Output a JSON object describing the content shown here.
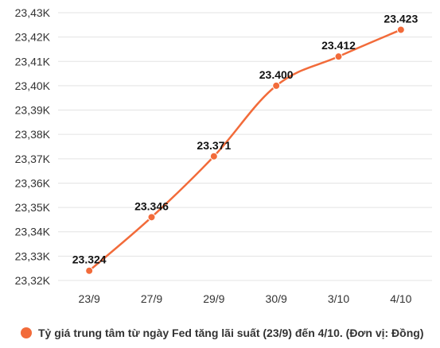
{
  "chart_data": {
    "type": "line",
    "categories": [
      "23/9",
      "27/9",
      "29/9",
      "30/9",
      "3/10",
      "4/10"
    ],
    "series": [
      {
        "name": "Tỷ giá trung tâm từ ngày Fed tăng lãi suất (23/9) đến 4/10. (Đơn vị: Đồng)",
        "values": [
          23324,
          23346,
          23371,
          23400,
          23412,
          23423
        ],
        "labels": [
          "23.324",
          "23.346",
          "23.371",
          "23.400",
          "23.412",
          "23.423"
        ],
        "color": "#f26b3a"
      }
    ],
    "yticks": [
      {
        "value": 23430,
        "label": "23,43K"
      },
      {
        "value": 23420,
        "label": "23,42K"
      },
      {
        "value": 23410,
        "label": "23,41K"
      },
      {
        "value": 23400,
        "label": "23,40K"
      },
      {
        "value": 23390,
        "label": "23,39K"
      },
      {
        "value": 23380,
        "label": "23,38K"
      },
      {
        "value": 23370,
        "label": "23,37K"
      },
      {
        "value": 23360,
        "label": "23,36K"
      },
      {
        "value": 23350,
        "label": "23,35K"
      },
      {
        "value": 23340,
        "label": "23,34K"
      },
      {
        "value": 23330,
        "label": "23,33K"
      },
      {
        "value": 23320,
        "label": "23,32K"
      }
    ],
    "ylim": [
      23320,
      23430
    ],
    "grid": true,
    "legend_position": "bottom",
    "title": "",
    "xlabel": "",
    "ylabel": ""
  }
}
